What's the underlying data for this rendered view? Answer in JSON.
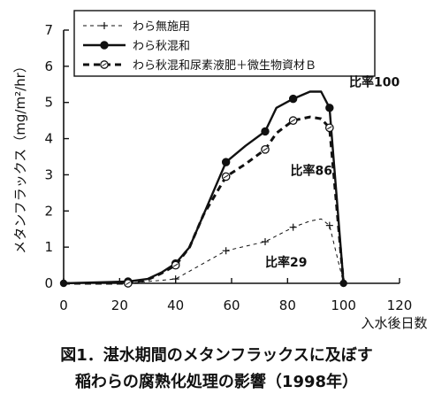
{
  "chart_data": {
    "type": "line",
    "title": "",
    "xlabel": "入水後日数",
    "ylabel": "メタンフラックス（mg/m²/hr）",
    "xlim": [
      0,
      120
    ],
    "ylim": [
      0,
      7
    ],
    "xticks": [
      0,
      20,
      40,
      60,
      80,
      100,
      120
    ],
    "yticks": [
      0,
      1,
      2,
      3,
      4,
      5,
      6,
      7
    ],
    "grid": false,
    "legend_position": "top-left",
    "series": [
      {
        "name": "わら無施用",
        "style": "thin-dashed-plus",
        "color": "#111111",
        "x": [
          0,
          23,
          30,
          40,
          58,
          72,
          82,
          88,
          92,
          95,
          100
        ],
        "y": [
          0,
          0.0,
          0.05,
          0.12,
          0.9,
          1.15,
          1.55,
          1.72,
          1.78,
          1.6,
          0.0
        ],
        "markers_x": [
          23,
          40,
          58,
          72,
          82,
          95
        ],
        "markers_y": [
          0.0,
          0.12,
          0.9,
          1.15,
          1.55,
          1.6
        ]
      },
      {
        "name": "わら秋混和",
        "style": "solid-filled-circle",
        "color": "#111111",
        "x": [
          0,
          23,
          30,
          35,
          40,
          45,
          50,
          58,
          65,
          72,
          76,
          82,
          88,
          92,
          95,
          100
        ],
        "y": [
          0,
          0.05,
          0.12,
          0.3,
          0.55,
          1.0,
          1.9,
          3.35,
          3.8,
          4.2,
          4.85,
          5.1,
          5.3,
          5.3,
          4.85,
          0.0
        ],
        "markers_x": [
          23,
          40,
          58,
          72,
          82,
          95
        ],
        "markers_y": [
          0.05,
          0.55,
          3.35,
          4.2,
          5.1,
          4.85
        ]
      },
      {
        "name": "わら秋混和尿素液肥＋微生物資材Ｂ",
        "style": "thick-dashed-open-circle",
        "color": "#111111",
        "x": [
          0,
          23,
          30,
          35,
          40,
          45,
          50,
          58,
          65,
          72,
          76,
          82,
          88,
          92,
          95,
          100
        ],
        "y": [
          0,
          0.0,
          0.1,
          0.28,
          0.5,
          1.0,
          1.9,
          2.95,
          3.3,
          3.7,
          4.15,
          4.5,
          4.6,
          4.55,
          4.3,
          0.0
        ],
        "markers_x": [
          23,
          40,
          58,
          72,
          82,
          95
        ],
        "markers_y": [
          0.0,
          0.5,
          2.95,
          3.7,
          4.5,
          4.3
        ]
      }
    ],
    "annotations": [
      {
        "text": "比率100",
        "x": 102,
        "y": 5.45
      },
      {
        "text": "比率86",
        "x": 81,
        "y": 3.0
      },
      {
        "text": "比率29",
        "x": 72,
        "y": 0.47
      }
    ],
    "caption_lines": [
      "図1．湛水期間のメタンフラックスに及ぼす",
      "稲わらの腐熟化処理の影響（1998年）"
    ]
  }
}
